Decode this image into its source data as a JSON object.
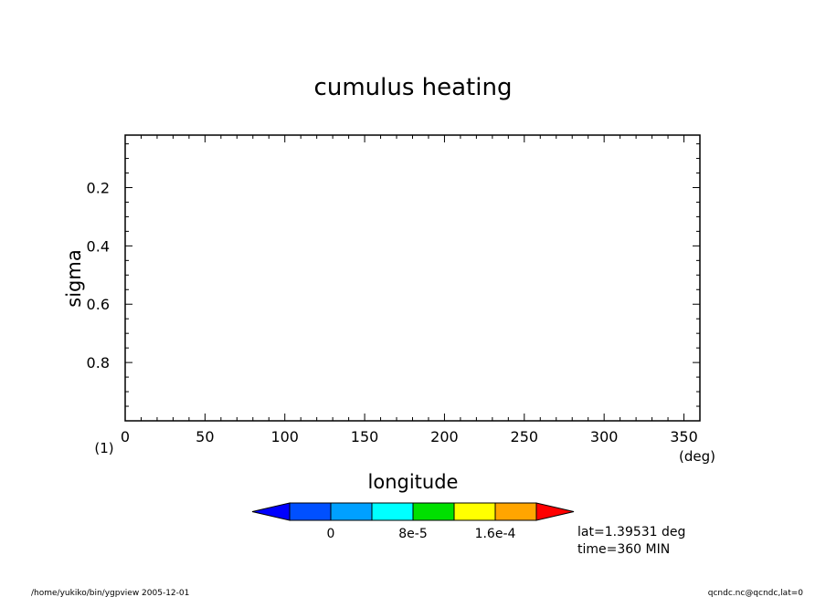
{
  "chart_data": {
    "type": "heatmap",
    "title": "cumulus heating",
    "xlabel": "longitude",
    "ylabel": "sigma",
    "xunit": "(deg)",
    "yunit": "(1)",
    "xlim": [
      0,
      360
    ],
    "ylim": [
      0.02,
      1.0
    ],
    "y_inverted": true,
    "xticks": [
      0,
      50,
      100,
      150,
      200,
      250,
      300,
      350
    ],
    "xtick_labels": [
      "0",
      "50",
      "100",
      "150",
      "200",
      "250",
      "300",
      "350"
    ],
    "yticks": [
      0.2,
      0.4,
      0.6,
      0.8
    ],
    "ytick_labels": [
      "0.2",
      "0.4",
      "0.6",
      "0.8"
    ],
    "grid": false,
    "data": [],
    "colorbar": {
      "colors": [
        "#0000ff",
        "#0050ff",
        "#00a0ff",
        "#00ffff",
        "#00e000",
        "#ffff00",
        "#ffa500",
        "#ff0000"
      ],
      "tick_labels": [
        "0",
        "8e-5",
        "1.6e-4"
      ],
      "tick_after_box": [
        1,
        3,
        5
      ],
      "extend": "both"
    },
    "annotations": [
      "lat=1.39531 deg",
      "time=360 MIN"
    ]
  },
  "footer": {
    "left": "/home/yukiko/bin/ygpview  2005-12-01",
    "right": "qcndc.nc@qcndc,lat=0"
  }
}
